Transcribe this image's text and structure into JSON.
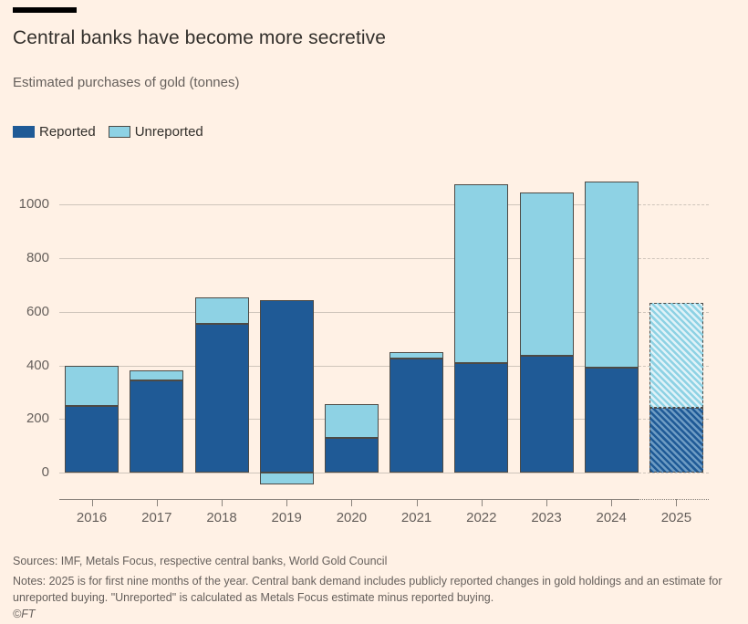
{
  "header": {
    "title": "Central banks have become more secretive",
    "subtitle": "Estimated purchases of gold (tonnes)"
  },
  "legend": [
    {
      "label": "Reported",
      "color": "#1F5A96"
    },
    {
      "label": "Unreported",
      "color": "#8ED2E4"
    }
  ],
  "chart_data": {
    "type": "bar",
    "stacked": true,
    "title": "Central banks have become more secretive",
    "subtitle": "Estimated purchases of gold (tonnes)",
    "unit": "tonnes",
    "categories": [
      "2016",
      "2017",
      "2018",
      "2019",
      "2020",
      "2021",
      "2022",
      "2023",
      "2024",
      "2025"
    ],
    "series": [
      {
        "name": "Reported",
        "color": "#1F5A96",
        "values": [
          250,
          345,
          555,
          645,
          130,
          425,
          410,
          435,
          390,
          240
        ]
      },
      {
        "name": "Unreported",
        "color": "#8ED2E4",
        "values": [
          150,
          35,
          100,
          -45,
          125,
          25,
          665,
          610,
          695,
          395
        ]
      }
    ],
    "forecast_categories": [
      "2025"
    ],
    "yticks": [
      0,
      200,
      400,
      600,
      800,
      1000
    ],
    "ylim": [
      -99,
      1117
    ],
    "grid": "horizontal",
    "legend_position": "top-left"
  },
  "footer": {
    "sources": "Sources: IMF, Metals Focus, respective central banks, World Gold Council",
    "notes": "Notes: 2025 is for first nine months of the year. Central bank demand includes publicly reported changes in gold holdings and an estimate for unreported buying. \"Unreported\" is calculated as Metals Focus estimate minus reported buying.",
    "copyright": "©FT"
  },
  "colors": {
    "background": "#FFF1E5",
    "reported": "#1F5A96",
    "unreported": "#8ED2E4",
    "grid": "#CFC5BB",
    "axis": "#8A837C",
    "text_dark": "#33302C",
    "text_muted": "#66605C",
    "bar_border": "#4D4A45",
    "top_rule": "#000000"
  }
}
